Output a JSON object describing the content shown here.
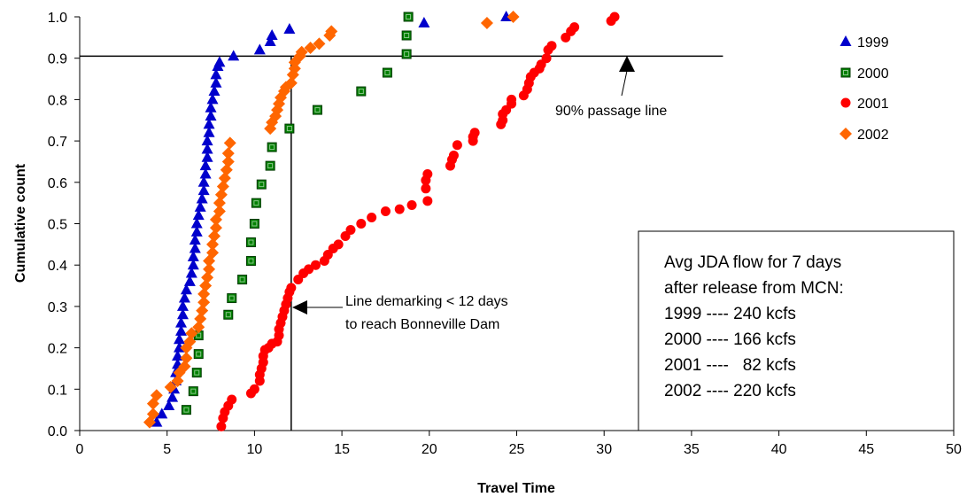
{
  "chart_data": {
    "type": "scatter",
    "xlabel": "Travel Time",
    "ylabel": "Cumulative count",
    "xlim": [
      0,
      50
    ],
    "ylim": [
      0,
      1.0
    ],
    "xticks": [
      "0",
      "5",
      "10",
      "15",
      "20",
      "25",
      "30",
      "35",
      "40",
      "45",
      "50"
    ],
    "yticks": [
      "0.0",
      "0.1",
      "0.2",
      "0.3",
      "0.4",
      "0.5",
      "0.6",
      "0.7",
      "0.8",
      "0.9",
      "1.0"
    ],
    "grid": false,
    "legend_position": "right",
    "series": [
      {
        "name": "1999",
        "marker": "triangle",
        "color": "#0000CC",
        "points": [
          [
            4.4,
            0.02
          ],
          [
            4.7,
            0.04
          ],
          [
            5.1,
            0.06
          ],
          [
            5.3,
            0.08
          ],
          [
            5.4,
            0.1
          ],
          [
            5.5,
            0.12
          ],
          [
            5.5,
            0.14
          ],
          [
            5.6,
            0.16
          ],
          [
            5.6,
            0.18
          ],
          [
            5.7,
            0.2
          ],
          [
            5.7,
            0.22
          ],
          [
            5.8,
            0.24
          ],
          [
            5.8,
            0.26
          ],
          [
            5.9,
            0.28
          ],
          [
            5.9,
            0.3
          ],
          [
            6.0,
            0.32
          ],
          [
            6.1,
            0.34
          ],
          [
            6.3,
            0.36
          ],
          [
            6.4,
            0.38
          ],
          [
            6.5,
            0.4
          ],
          [
            6.5,
            0.42
          ],
          [
            6.6,
            0.44
          ],
          [
            6.6,
            0.46
          ],
          [
            6.7,
            0.48
          ],
          [
            6.7,
            0.5
          ],
          [
            6.8,
            0.52
          ],
          [
            6.9,
            0.54
          ],
          [
            7.0,
            0.56
          ],
          [
            7.1,
            0.58
          ],
          [
            7.1,
            0.6
          ],
          [
            7.2,
            0.62
          ],
          [
            7.2,
            0.64
          ],
          [
            7.3,
            0.66
          ],
          [
            7.3,
            0.68
          ],
          [
            7.3,
            0.7
          ],
          [
            7.4,
            0.72
          ],
          [
            7.4,
            0.74
          ],
          [
            7.5,
            0.76
          ],
          [
            7.5,
            0.78
          ],
          [
            7.6,
            0.8
          ],
          [
            7.7,
            0.82
          ],
          [
            7.8,
            0.84
          ],
          [
            7.8,
            0.86
          ],
          [
            7.9,
            0.88
          ],
          [
            8.0,
            0.89
          ],
          [
            8.8,
            0.905
          ],
          [
            10.3,
            0.92
          ],
          [
            10.9,
            0.94
          ],
          [
            11.0,
            0.955
          ],
          [
            12.0,
            0.97
          ],
          [
            19.7,
            0.985
          ],
          [
            24.4,
            1.0
          ]
        ]
      },
      {
        "name": "2000",
        "marker": "square",
        "color": "#008000",
        "points": [
          [
            6.1,
            0.05
          ],
          [
            6.5,
            0.095
          ],
          [
            6.7,
            0.14
          ],
          [
            6.8,
            0.185
          ],
          [
            6.8,
            0.23
          ],
          [
            8.5,
            0.28
          ],
          [
            8.7,
            0.32
          ],
          [
            9.3,
            0.365
          ],
          [
            9.8,
            0.41
          ],
          [
            9.8,
            0.455
          ],
          [
            10.0,
            0.5
          ],
          [
            10.1,
            0.55
          ],
          [
            10.4,
            0.595
          ],
          [
            10.9,
            0.64
          ],
          [
            11.0,
            0.685
          ],
          [
            12.0,
            0.73
          ],
          [
            13.6,
            0.775
          ],
          [
            16.1,
            0.82
          ],
          [
            17.6,
            0.865
          ],
          [
            18.7,
            0.91
          ],
          [
            18.7,
            0.955
          ],
          [
            18.8,
            1.0
          ]
        ]
      },
      {
        "name": "2001",
        "marker": "circle",
        "color": "#FF0000",
        "points": [
          [
            8.1,
            0.01
          ],
          [
            8.2,
            0.03
          ],
          [
            8.3,
            0.045
          ],
          [
            8.5,
            0.06
          ],
          [
            8.7,
            0.075
          ],
          [
            9.8,
            0.09
          ],
          [
            10.0,
            0.1
          ],
          [
            10.3,
            0.12
          ],
          [
            10.3,
            0.135
          ],
          [
            10.4,
            0.15
          ],
          [
            10.5,
            0.165
          ],
          [
            10.5,
            0.18
          ],
          [
            10.6,
            0.195
          ],
          [
            10.8,
            0.2
          ],
          [
            11.0,
            0.21
          ],
          [
            11.3,
            0.215
          ],
          [
            11.4,
            0.23
          ],
          [
            11.4,
            0.245
          ],
          [
            11.5,
            0.26
          ],
          [
            11.6,
            0.275
          ],
          [
            11.7,
            0.29
          ],
          [
            11.8,
            0.305
          ],
          [
            11.9,
            0.32
          ],
          [
            12.0,
            0.335
          ],
          [
            12.1,
            0.345
          ],
          [
            12.5,
            0.365
          ],
          [
            12.8,
            0.38
          ],
          [
            13.1,
            0.39
          ],
          [
            13.5,
            0.4
          ],
          [
            14.0,
            0.41
          ],
          [
            14.2,
            0.425
          ],
          [
            14.5,
            0.44
          ],
          [
            14.8,
            0.45
          ],
          [
            15.2,
            0.47
          ],
          [
            15.5,
            0.485
          ],
          [
            16.1,
            0.5
          ],
          [
            16.7,
            0.515
          ],
          [
            17.5,
            0.53
          ],
          [
            18.3,
            0.535
          ],
          [
            19.0,
            0.545
          ],
          [
            19.9,
            0.555
          ],
          [
            19.8,
            0.585
          ],
          [
            19.8,
            0.605
          ],
          [
            19.9,
            0.62
          ],
          [
            21.2,
            0.64
          ],
          [
            21.3,
            0.655
          ],
          [
            21.4,
            0.665
          ],
          [
            21.6,
            0.69
          ],
          [
            22.5,
            0.7
          ],
          [
            22.5,
            0.71
          ],
          [
            22.6,
            0.72
          ],
          [
            24.1,
            0.74
          ],
          [
            24.2,
            0.75
          ],
          [
            24.2,
            0.765
          ],
          [
            24.4,
            0.775
          ],
          [
            24.7,
            0.79
          ],
          [
            24.7,
            0.8
          ],
          [
            25.4,
            0.81
          ],
          [
            25.6,
            0.825
          ],
          [
            25.7,
            0.84
          ],
          [
            25.8,
            0.855
          ],
          [
            26.0,
            0.865
          ],
          [
            26.3,
            0.875
          ],
          [
            26.4,
            0.885
          ],
          [
            26.7,
            0.9
          ],
          [
            26.8,
            0.92
          ],
          [
            27.0,
            0.93
          ],
          [
            27.8,
            0.95
          ],
          [
            28.1,
            0.965
          ],
          [
            28.3,
            0.975
          ],
          [
            30.4,
            0.99
          ],
          [
            30.6,
            1.0
          ]
        ]
      },
      {
        "name": "2002",
        "marker": "diamond",
        "color": "#FF6600",
        "points": [
          [
            4.0,
            0.02
          ],
          [
            4.2,
            0.04
          ],
          [
            4.2,
            0.065
          ],
          [
            4.4,
            0.085
          ],
          [
            5.2,
            0.105
          ],
          [
            5.6,
            0.12
          ],
          [
            5.7,
            0.14
          ],
          [
            6.0,
            0.155
          ],
          [
            6.1,
            0.175
          ],
          [
            6.1,
            0.2
          ],
          [
            6.3,
            0.215
          ],
          [
            6.4,
            0.235
          ],
          [
            6.8,
            0.25
          ],
          [
            6.9,
            0.27
          ],
          [
            7.0,
            0.29
          ],
          [
            7.1,
            0.31
          ],
          [
            7.1,
            0.33
          ],
          [
            7.2,
            0.35
          ],
          [
            7.3,
            0.37
          ],
          [
            7.4,
            0.39
          ],
          [
            7.4,
            0.41
          ],
          [
            7.6,
            0.43
          ],
          [
            7.6,
            0.45
          ],
          [
            7.7,
            0.47
          ],
          [
            7.8,
            0.49
          ],
          [
            7.8,
            0.51
          ],
          [
            8.0,
            0.53
          ],
          [
            8.0,
            0.55
          ],
          [
            8.1,
            0.57
          ],
          [
            8.2,
            0.59
          ],
          [
            8.3,
            0.61
          ],
          [
            8.4,
            0.63
          ],
          [
            8.5,
            0.65
          ],
          [
            8.5,
            0.67
          ],
          [
            8.6,
            0.695
          ],
          [
            10.9,
            0.73
          ],
          [
            11.0,
            0.745
          ],
          [
            11.2,
            0.76
          ],
          [
            11.3,
            0.775
          ],
          [
            11.4,
            0.79
          ],
          [
            11.5,
            0.805
          ],
          [
            11.7,
            0.82
          ],
          [
            11.8,
            0.83
          ],
          [
            12.1,
            0.84
          ],
          [
            12.2,
            0.86
          ],
          [
            12.3,
            0.875
          ],
          [
            12.3,
            0.89
          ],
          [
            12.6,
            0.905
          ],
          [
            12.7,
            0.915
          ],
          [
            13.2,
            0.925
          ],
          [
            13.7,
            0.935
          ],
          [
            14.3,
            0.955
          ],
          [
            14.4,
            0.965
          ],
          [
            23.3,
            0.985
          ],
          [
            24.8,
            1.0
          ]
        ]
      }
    ],
    "reference_lines": [
      {
        "orientation": "horizontal",
        "y": 0.905,
        "x_start": 0,
        "x_end": 36.8
      },
      {
        "orientation": "vertical",
        "x": 12.1,
        "y_start": 0,
        "y_end": 0.905
      }
    ],
    "annotations": {
      "passage_label": "90% passage line",
      "demarking_line1": "Line demarking < 12 days",
      "demarking_line2": "to reach Bonneville Dam"
    },
    "flow_box": {
      "lines": [
        "Avg JDA flow for 7 days",
        "after release from MCN:",
        "1999 ---- 240 kcfs",
        "2000 ---- 166 kcfs",
        "2001 ----   82 kcfs",
        "2002 ---- 220 kcfs"
      ]
    }
  }
}
